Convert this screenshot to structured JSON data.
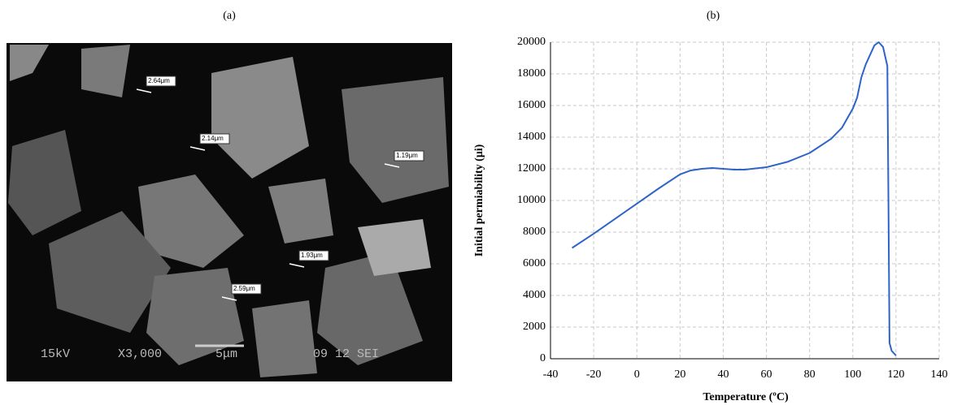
{
  "image_panel": {
    "label": "(a)",
    "measurements": [
      "2.64μm",
      "2.14μm",
      "1.19μm",
      "1.93μm",
      "2.59μm"
    ],
    "info_bar": [
      "15kV",
      "X3,000",
      "5μm",
      "09 12 SEI"
    ]
  },
  "chart_data": {
    "type": "line",
    "title": "(b)",
    "x_label": "Temperature (ºC)",
    "y_label": "Initial permiability (μi)",
    "x": [
      -30,
      -20,
      -10,
      0,
      10,
      20,
      25,
      30,
      35,
      40,
      45,
      50,
      60,
      70,
      80,
      90,
      95,
      100,
      102,
      104,
      106,
      108,
      110,
      112,
      114,
      116,
      116.5,
      117,
      118,
      120
    ],
    "values": [
      7000,
      7900,
      8850,
      9800,
      10750,
      11650,
      11900,
      12000,
      12050,
      12000,
      11950,
      11950,
      12100,
      12450,
      13000,
      13900,
      14600,
      15800,
      16500,
      17800,
      18600,
      19200,
      19800,
      20000,
      19700,
      18500,
      10000,
      1000,
      500,
      200
    ],
    "color": "#2e63c8",
    "xlim": [
      -40,
      140
    ],
    "xticks": [
      -40,
      -20,
      0,
      20,
      40,
      60,
      80,
      100,
      120,
      140
    ],
    "ylim": [
      0,
      20000
    ],
    "yticks": [
      0,
      2000,
      4000,
      6000,
      8000,
      10000,
      12000,
      14000,
      16000,
      18000,
      20000
    ],
    "grid": true
  }
}
